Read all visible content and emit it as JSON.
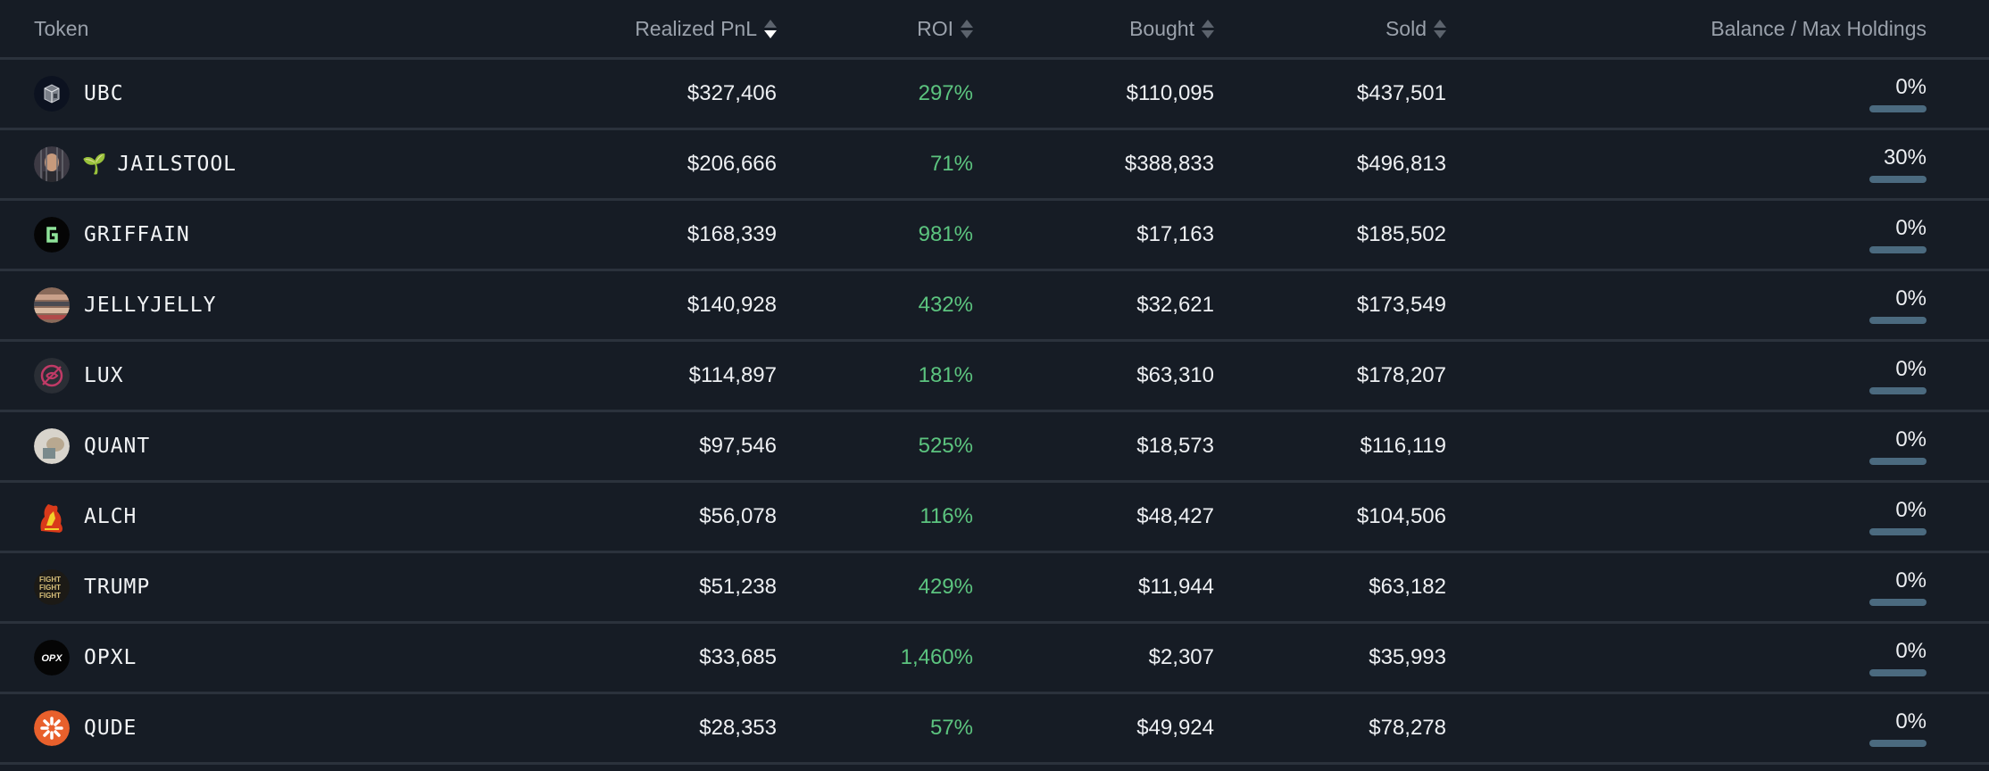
{
  "header": {
    "token": "Token",
    "realized_pnl": "Realized PnL",
    "roi": "ROI",
    "bought": "Bought",
    "sold": "Sold",
    "balance": "Balance / Max Holdings",
    "sort_active": "realized_pnl",
    "sort_direction": "desc"
  },
  "colors": {
    "background": "#161c25",
    "divider": "#2b323c",
    "roi_positive": "#5cc47f",
    "bar_track": "#4b6a7f",
    "bar_fill": "#8dd0f5"
  },
  "rows": [
    {
      "ticker": "UBC",
      "icon": "ubc-cube-icon",
      "pnl": "$327,406",
      "roi": "297%",
      "bought": "$110,095",
      "sold": "$437,501",
      "balance_pct": "0%",
      "balance_value": 0
    },
    {
      "ticker": "JAILSTOOL",
      "icon": "jailstool-avatar-icon",
      "prefix_icon": "🌱",
      "pnl": "$206,666",
      "roi": "71%",
      "bought": "$388,833",
      "sold": "$496,813",
      "balance_pct": "30%",
      "balance_value": 30
    },
    {
      "ticker": "GRIFFAIN",
      "icon": "griffain-g-icon",
      "pnl": "$168,339",
      "roi": "981%",
      "bought": "$17,163",
      "sold": "$185,502",
      "balance_pct": "0%",
      "balance_value": 0
    },
    {
      "ticker": "JELLYJELLY",
      "icon": "jellyjelly-avatar-icon",
      "pnl": "$140,928",
      "roi": "432%",
      "bought": "$32,621",
      "sold": "$173,549",
      "balance_pct": "0%",
      "balance_value": 0
    },
    {
      "ticker": "LUX",
      "icon": "lux-logo-icon",
      "pnl": "$114,897",
      "roi": "181%",
      "bought": "$63,310",
      "sold": "$178,207",
      "balance_pct": "0%",
      "balance_value": 0
    },
    {
      "ticker": "QUANT",
      "icon": "quant-avatar-icon",
      "pnl": "$97,546",
      "roi": "525%",
      "bought": "$18,573",
      "sold": "$116,119",
      "balance_pct": "0%",
      "balance_value": 0
    },
    {
      "ticker": "ALCH",
      "icon": "alch-flame-icon",
      "pnl": "$56,078",
      "roi": "116%",
      "bought": "$48,427",
      "sold": "$104,506",
      "balance_pct": "0%",
      "balance_value": 0
    },
    {
      "ticker": "TRUMP",
      "icon": "trump-fight-icon",
      "pnl": "$51,238",
      "roi": "429%",
      "bought": "$11,944",
      "sold": "$63,182",
      "balance_pct": "0%",
      "balance_value": 0
    },
    {
      "ticker": "OPXL",
      "icon": "opxl-logo-icon",
      "pnl": "$33,685",
      "roi": "1,460%",
      "bought": "$2,307",
      "sold": "$35,993",
      "balance_pct": "0%",
      "balance_value": 0
    },
    {
      "ticker": "QUDE",
      "icon": "qude-burst-icon",
      "pnl": "$28,353",
      "roi": "57%",
      "bought": "$49,924",
      "sold": "$78,278",
      "balance_pct": "0%",
      "balance_value": 0
    }
  ]
}
